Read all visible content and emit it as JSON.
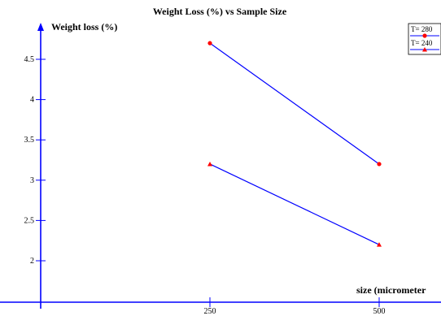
{
  "chart_data": {
    "type": "line",
    "title": "Weight Loss (%) vs Sample Size",
    "xlabel": "size (micrometer",
    "ylabel": "Weight loss (%)",
    "categories": [
      "250",
      "500"
    ],
    "xticks": [
      "250",
      "500"
    ],
    "yticks": [
      "2",
      "2.5",
      "3",
      "3.5",
      "4",
      "4.5"
    ],
    "ylim": [
      1.5,
      5.3
    ],
    "grid": false,
    "legend_position": "top-right",
    "series": [
      {
        "name": "T= 280",
        "values": [
          4.7,
          3.2
        ],
        "color": "#0000ff",
        "marker": "circle",
        "marker_color": "#ff0000"
      },
      {
        "name": "T= 240",
        "values": [
          3.2,
          2.2
        ],
        "color": "#0000ff",
        "marker": "triangle",
        "marker_color": "#ff0000"
      }
    ],
    "axis_color": "#0000ff"
  }
}
